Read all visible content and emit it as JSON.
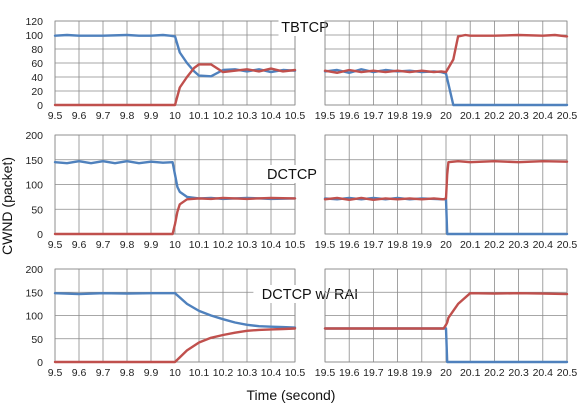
{
  "figure": {
    "ylabel": "CWND (packet)",
    "xlabel": "Time (second)"
  },
  "colors": {
    "flow1": "#4f81bd",
    "flow2": "#c0504d"
  },
  "chart_data": [
    {
      "type": "line",
      "title": "TBTCP",
      "xlim": [
        9.5,
        10.5
      ],
      "ylim": [
        0,
        120
      ],
      "xticks": [
        "9.5",
        "9.6",
        "9.7",
        "9.8",
        "9.9",
        "10",
        "10.1",
        "10.2",
        "10.3",
        "10.4",
        "10.5"
      ],
      "yticks": [
        "0",
        "20",
        "40",
        "60",
        "80",
        "100",
        "120"
      ],
      "grid": true,
      "x": [
        9.5,
        9.55,
        9.6,
        9.7,
        9.8,
        9.85,
        9.9,
        9.95,
        9.98,
        10.0,
        10.02,
        10.05,
        10.08,
        10.1,
        10.15,
        10.2,
        10.25,
        10.3,
        10.35,
        10.4,
        10.45,
        10.5
      ],
      "series": [
        {
          "values": [
            99,
            100,
            99,
            99,
            100,
            99,
            99,
            100,
            99,
            98,
            75,
            60,
            48,
            42,
            41,
            50,
            51,
            48,
            51,
            47,
            50,
            49
          ],
          "color": "#4f81bd"
        },
        {
          "values": [
            0,
            0,
            0,
            0,
            0,
            0,
            0,
            0,
            0,
            0,
            25,
            40,
            53,
            58,
            58,
            47,
            49,
            51,
            48,
            52,
            48,
            50
          ],
          "color": "#c0504d"
        }
      ]
    },
    {
      "type": "line",
      "xlim": [
        19.5,
        20.5
      ],
      "ylim": [
        0,
        120
      ],
      "xticks": [
        "19.5",
        "19.6",
        "19.7",
        "19.8",
        "19.9",
        "20",
        "20.1",
        "20.2",
        "20.3",
        "20.4",
        "20.5"
      ],
      "grid": true,
      "x": [
        19.5,
        19.55,
        19.6,
        19.65,
        19.7,
        19.75,
        19.8,
        19.85,
        19.9,
        19.95,
        19.98,
        20.0,
        20.03,
        20.05,
        20.08,
        20.1,
        20.2,
        20.3,
        20.4,
        20.45,
        20.5
      ],
      "series": [
        {
          "values": [
            48,
            50,
            46,
            51,
            47,
            50,
            48,
            49,
            47,
            48,
            47,
            45,
            0,
            0,
            0,
            0,
            0,
            0,
            0,
            0,
            0
          ],
          "color": "#4f81bd"
        },
        {
          "values": [
            49,
            46,
            50,
            47,
            49,
            47,
            49,
            47,
            49,
            47,
            48,
            47,
            65,
            98,
            100,
            99,
            99,
            100,
            99,
            100,
            98
          ],
          "color": "#c0504d"
        }
      ]
    },
    {
      "type": "line",
      "title": "DCTCP",
      "xlim": [
        9.5,
        10.5
      ],
      "ylim": [
        0,
        200
      ],
      "xticks": [
        "9.5",
        "9.6",
        "9.7",
        "9.8",
        "9.9",
        "10",
        "10.1",
        "10.2",
        "10.3",
        "10.4",
        "10.5"
      ],
      "yticks": [
        "0",
        "50",
        "100",
        "150",
        "200"
      ],
      "grid": true,
      "x": [
        9.5,
        9.55,
        9.6,
        9.65,
        9.7,
        9.75,
        9.8,
        9.85,
        9.9,
        9.95,
        9.99,
        10.0,
        10.01,
        10.02,
        10.05,
        10.1,
        10.15,
        10.2,
        10.3,
        10.4,
        10.5
      ],
      "series": [
        {
          "values": [
            145,
            143,
            147,
            143,
            147,
            143,
            147,
            143,
            146,
            144,
            145,
            120,
            95,
            85,
            75,
            72,
            73,
            71,
            73,
            71,
            72
          ],
          "color": "#4f81bd"
        },
        {
          "values": [
            0,
            0,
            0,
            0,
            0,
            0,
            0,
            0,
            0,
            0,
            0,
            20,
            45,
            60,
            70,
            72,
            71,
            73,
            71,
            73,
            72
          ],
          "color": "#c0504d"
        }
      ]
    },
    {
      "type": "line",
      "xlim": [
        19.5,
        20.5
      ],
      "ylim": [
        0,
        200
      ],
      "xticks": [
        "19.5",
        "19.6",
        "19.7",
        "19.8",
        "19.9",
        "20",
        "20.1",
        "20.2",
        "20.3",
        "20.4",
        "20.5"
      ],
      "grid": true,
      "x": [
        19.5,
        19.55,
        19.6,
        19.65,
        19.7,
        19.75,
        19.8,
        19.85,
        19.9,
        19.95,
        19.99,
        20.0,
        20.005,
        20.01,
        20.05,
        20.1,
        20.2,
        20.3,
        20.4,
        20.5
      ],
      "series": [
        {
          "values": [
            72,
            70,
            73,
            70,
            73,
            70,
            73,
            70,
            72,
            71,
            70,
            70,
            0,
            0,
            0,
            0,
            0,
            0,
            0,
            0
          ],
          "color": "#4f81bd"
        },
        {
          "values": [
            70,
            73,
            69,
            73,
            69,
            72,
            70,
            72,
            70,
            72,
            70,
            72,
            120,
            145,
            147,
            145,
            147,
            145,
            147,
            146
          ],
          "color": "#c0504d"
        }
      ]
    },
    {
      "type": "line",
      "title": "DCTCP w/ RAI",
      "xlim": [
        9.5,
        10.5
      ],
      "ylim": [
        0,
        200
      ],
      "xticks": [
        "9.5",
        "9.6",
        "9.7",
        "9.8",
        "9.9",
        "10",
        "10.1",
        "10.2",
        "10.3",
        "10.4",
        "10.5"
      ],
      "yticks": [
        "0",
        "50",
        "100",
        "150",
        "200"
      ],
      "grid": true,
      "x": [
        9.5,
        9.6,
        9.7,
        9.8,
        9.9,
        9.95,
        10.0,
        10.05,
        10.1,
        10.15,
        10.2,
        10.25,
        10.3,
        10.35,
        10.4,
        10.45,
        10.5
      ],
      "series": [
        {
          "values": [
            148,
            146,
            148,
            147,
            148,
            148,
            148,
            125,
            110,
            100,
            92,
            85,
            80,
            77,
            76,
            75,
            74
          ],
          "color": "#4f81bd"
        },
        {
          "values": [
            0,
            0,
            0,
            0,
            0,
            0,
            0,
            25,
            42,
            52,
            58,
            63,
            67,
            69,
            70,
            71,
            72
          ],
          "color": "#c0504d"
        }
      ]
    },
    {
      "type": "line",
      "xlim": [
        19.5,
        20.5
      ],
      "ylim": [
        0,
        200
      ],
      "xticks": [
        "19.5",
        "19.6",
        "19.7",
        "19.8",
        "19.9",
        "20",
        "20.1",
        "20.2",
        "20.3",
        "20.4",
        "20.5"
      ],
      "grid": true,
      "x": [
        19.5,
        19.6,
        19.7,
        19.8,
        19.9,
        19.95,
        19.99,
        20.0,
        20.005,
        20.01,
        20.05,
        20.1,
        20.2,
        20.3,
        20.4,
        20.5
      ],
      "series": [
        {
          "values": [
            72,
            72,
            72,
            72,
            72,
            72,
            72,
            72,
            0,
            0,
            0,
            0,
            0,
            0,
            0,
            0
          ],
          "color": "#4f81bd"
        },
        {
          "values": [
            72,
            72,
            72,
            72,
            72,
            72,
            72,
            80,
            85,
            95,
            125,
            148,
            147,
            148,
            147,
            146
          ],
          "color": "#c0504d"
        }
      ]
    }
  ]
}
